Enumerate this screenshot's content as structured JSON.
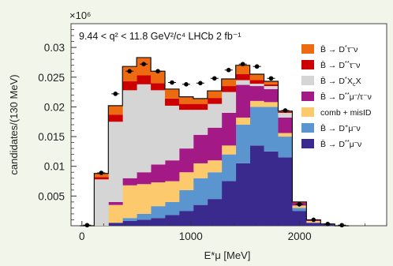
{
  "chart_data": {
    "type": "stacked-bar-histogram",
    "scale_label": "×10⁶",
    "annotation": "9.44 < q² < 11.8 GeV²/c⁴   LHCb   2 fb⁻¹",
    "xlabel": "E*μ [MeV]",
    "ylabel": "candidates/(130 MeV)",
    "xlim": [
      -100,
      2800
    ],
    "ylim": [
      0,
      0.034
    ],
    "x_ticks": [
      0,
      1000,
      2000
    ],
    "y_ticks": [
      0.005,
      0.01,
      0.015,
      0.02,
      0.025,
      0.03
    ],
    "y_tick_labels": [
      "0.005",
      "0.01",
      "0.015",
      "0.02",
      "0.025",
      "0.03"
    ],
    "bin_edges": [
      -17,
      113,
      243,
      373,
      503,
      633,
      763,
      893,
      1023,
      1153,
      1283,
      1413,
      1543,
      1673,
      1803,
      1933,
      2063,
      2193,
      2323,
      2453
    ],
    "series": [
      {
        "name": "B̄ → D*μ⁻ν",
        "color": "#3b2a8e",
        "values": [
          0,
          0,
          0.0005,
          0.0008,
          0.001,
          0.0013,
          0.0018,
          0.0025,
          0.0035,
          0.0045,
          0.0075,
          0.0105,
          0.0135,
          0.0125,
          0.0115,
          0.0025,
          0.0005,
          0.0002,
          0
        ]
      },
      {
        "name": "B̄ → D*μ⁻ν",
        "color": "#5b95d0",
        "values": [
          0,
          0,
          0,
          0.0005,
          0.001,
          0.002,
          0.0022,
          0.0035,
          0.0045,
          0.0045,
          0.0045,
          0.0065,
          0.0065,
          0.0075,
          0.0035,
          0.0005,
          0,
          0,
          0
        ]
      },
      {
        "name": "comb + misID",
        "color": "#fcc96c",
        "values": [
          0,
          0,
          0.003,
          0.0055,
          0.005,
          0.004,
          0.0035,
          0.003,
          0.0025,
          0.002,
          0.0015,
          0.0012,
          0.001,
          0.0008,
          0.0006,
          0.0004,
          0.0003,
          0.0001,
          0
        ]
      },
      {
        "name": "B̄ → D**μ⁻/τ⁻ν",
        "color": "#a31a86",
        "values": [
          0,
          0,
          0.0005,
          0.0012,
          0.002,
          0.003,
          0.0035,
          0.004,
          0.0048,
          0.0055,
          0.0055,
          0.0055,
          0.0025,
          0.0022,
          0.0026,
          0.0004,
          0.0002,
          0,
          0
        ]
      },
      {
        "name": "B̄ → D*XcX",
        "color": "#d5d5d5",
        "values": [
          0,
          0.0078,
          0.0135,
          0.0148,
          0.0148,
          0.0125,
          0.0092,
          0.0065,
          0.0042,
          0.004,
          0.0035,
          0.0008,
          0.0004,
          0.0005,
          0.0008,
          0,
          0,
          0,
          0
        ]
      },
      {
        "name": "B̄ → D**τ⁻ν",
        "color": "#cc0000",
        "values": [
          0,
          0.0004,
          0.0012,
          0.0015,
          0.0015,
          0.0012,
          0.0012,
          0.001,
          0.001,
          0.001,
          0.001,
          0.001,
          0.0006,
          0.0003,
          0.0002,
          0.0001,
          0,
          0,
          0
        ]
      },
      {
        "name": "B̄ → D*τ⁻ν",
        "color": "#ee6a10",
        "values": [
          0,
          0.0006,
          0.0015,
          0.0025,
          0.003,
          0.002,
          0.0016,
          0.0012,
          0.0009,
          0.0012,
          0.0012,
          0.0015,
          0.001,
          0.0005,
          0.0001,
          0.0001,
          0,
          0,
          0
        ]
      }
    ],
    "data_points": {
      "x": [
        48,
        178,
        308,
        438,
        568,
        698,
        828,
        958,
        1088,
        1218,
        1348,
        1478,
        1608,
        1738,
        1868,
        1998,
        2128,
        2258,
        2388
      ],
      "y": [
        0.0001,
        0.0089,
        0.0222,
        0.026,
        0.0272,
        0.026,
        0.0241,
        0.0238,
        0.024,
        0.0248,
        0.0262,
        0.0272,
        0.0268,
        0.0248,
        0.0194,
        0.0036,
        0.001,
        0.0003,
        0.0001
      ]
    },
    "legend_position": "right",
    "legend_order": [
      6,
      5,
      4,
      3,
      2,
      1,
      0
    ],
    "legend_labels": [
      {
        "main": "B̄ → D",
        "sup": "*",
        "after": "τ",
        "sup2": "–",
        "tail": "ν"
      },
      {
        "main": "B̄ → D",
        "sup": "**",
        "after": "τ",
        "sup2": "–",
        "tail": "ν"
      },
      {
        "main": "B̄ → D",
        "sup": "*",
        "after": "X",
        "sub2": "c",
        "tail": "X"
      },
      {
        "main": "B̄ → D",
        "sup": "**",
        "after": "μ",
        "sup2": "–",
        "tail": "/τ⁻ν"
      },
      {
        "main": "comb + misID",
        "sup": "",
        "after": "",
        "sup2": "",
        "tail": ""
      },
      {
        "main": "B̄ → D",
        "sup": "+",
        "after": "μ",
        "sup2": "–",
        "tail": "ν"
      },
      {
        "main": "B̄ → D",
        "sup": "**",
        "after": "μ",
        "sup2": "–",
        "tail": "ν"
      }
    ]
  }
}
